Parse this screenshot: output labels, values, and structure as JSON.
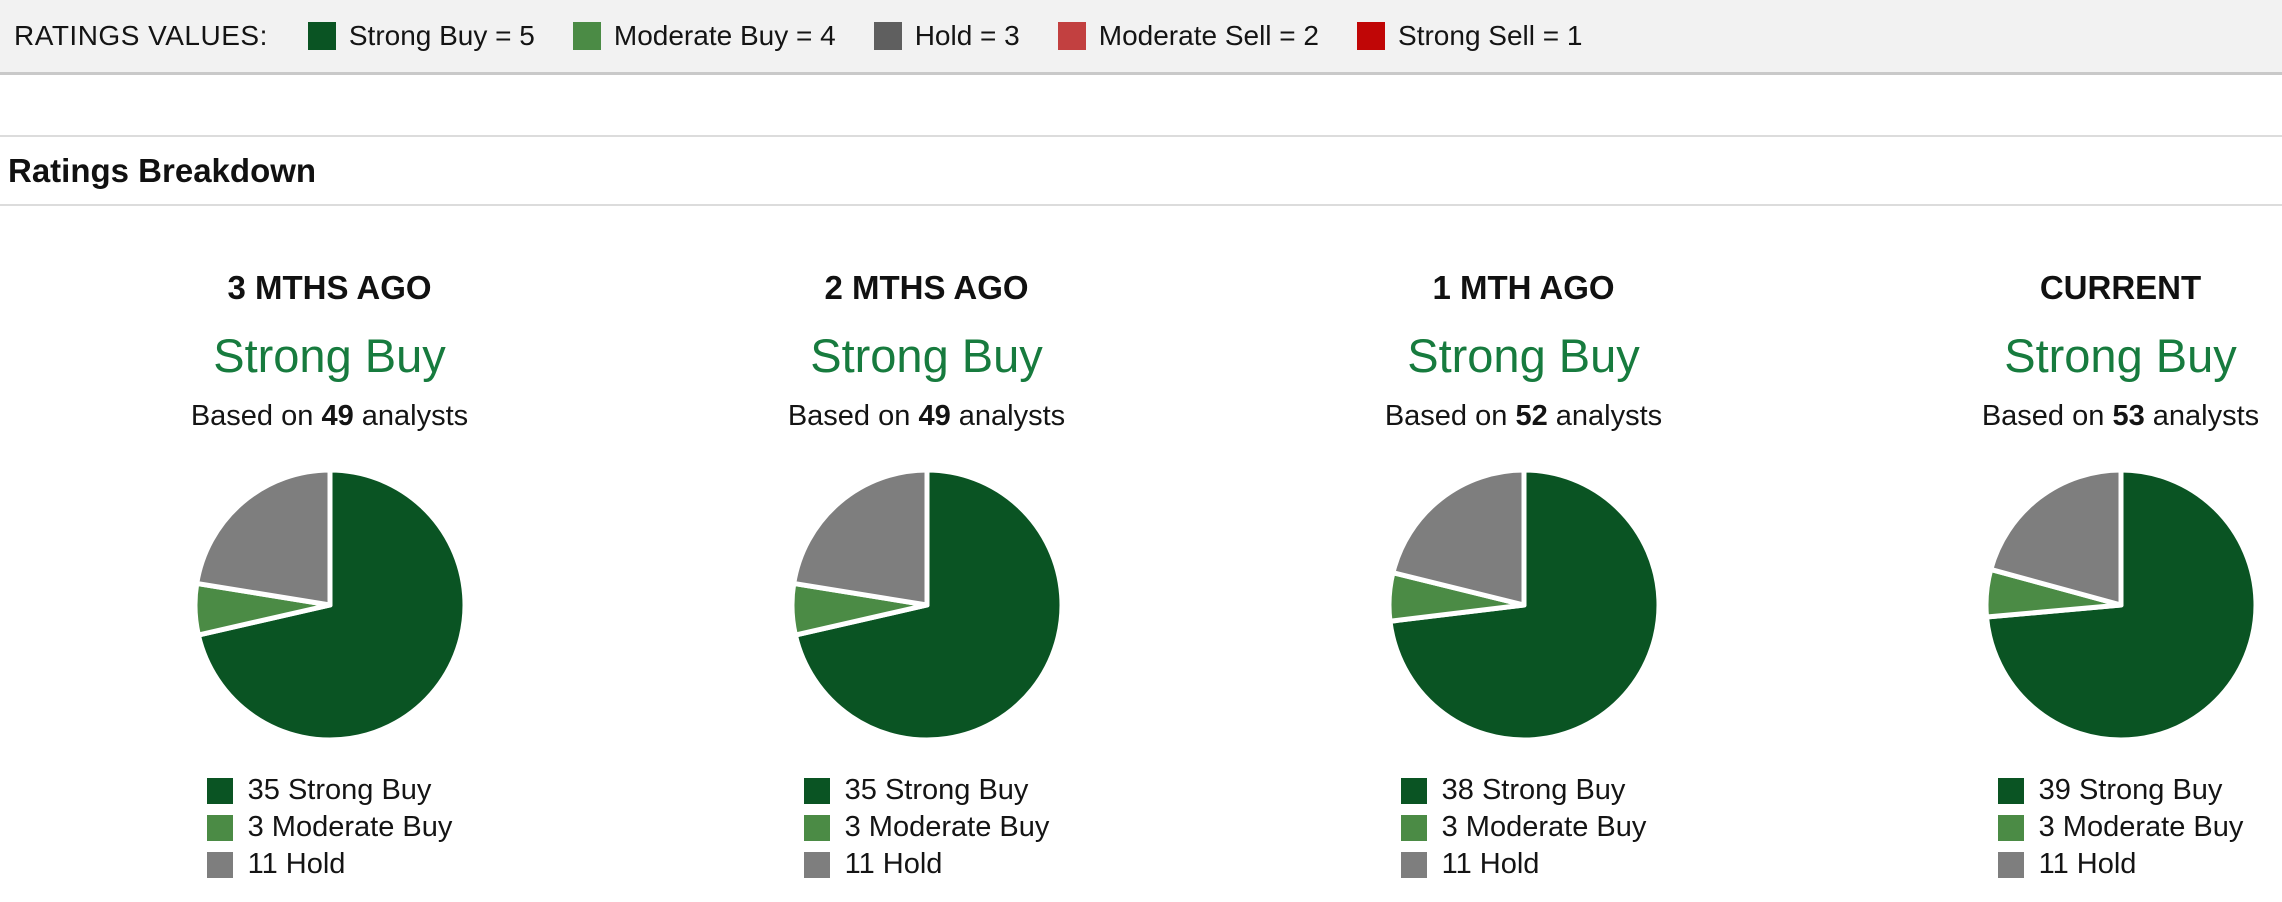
{
  "ratings_values_bar": {
    "label": "RATINGS VALUES:",
    "items": [
      {
        "label": "Strong Buy = 5",
        "color": "#0a5423"
      },
      {
        "label": "Moderate Buy = 4",
        "color": "#4b8b45"
      },
      {
        "label": "Hold = 3",
        "color": "#5f5f5f"
      },
      {
        "label": "Moderate Sell = 2",
        "color": "#c24040"
      },
      {
        "label": "Strong Sell = 1",
        "color": "#c00606"
      }
    ]
  },
  "section": {
    "title": "Ratings Breakdown"
  },
  "labels": {
    "based_on": "Based on",
    "analysts": "analysts"
  },
  "colors": {
    "consensus_text": "#177b3e",
    "pie_stroke": "#ffffff",
    "strong_buy": "#0a5423",
    "moderate_buy": "#4b8b45",
    "hold": "#7e7e7e"
  },
  "chart_data": [
    {
      "type": "pie",
      "title": "3 MTHS AGO",
      "consensus": "Strong Buy",
      "analysts": 49,
      "start_angle_deg": 0,
      "direction": "clockwise",
      "slices": [
        {
          "label": "Strong Buy",
          "value": 35,
          "color": "#0a5423"
        },
        {
          "label": "Moderate Buy",
          "value": 3,
          "color": "#4b8b45"
        },
        {
          "label": "Hold",
          "value": 11,
          "color": "#7e7e7e"
        }
      ]
    },
    {
      "type": "pie",
      "title": "2 MTHS AGO",
      "consensus": "Strong Buy",
      "analysts": 49,
      "start_angle_deg": 0,
      "direction": "clockwise",
      "slices": [
        {
          "label": "Strong Buy",
          "value": 35,
          "color": "#0a5423"
        },
        {
          "label": "Moderate Buy",
          "value": 3,
          "color": "#4b8b45"
        },
        {
          "label": "Hold",
          "value": 11,
          "color": "#7e7e7e"
        }
      ]
    },
    {
      "type": "pie",
      "title": "1 MTH AGO",
      "consensus": "Strong Buy",
      "analysts": 52,
      "start_angle_deg": 0,
      "direction": "clockwise",
      "slices": [
        {
          "label": "Strong Buy",
          "value": 38,
          "color": "#0a5423"
        },
        {
          "label": "Moderate Buy",
          "value": 3,
          "color": "#4b8b45"
        },
        {
          "label": "Hold",
          "value": 11,
          "color": "#7e7e7e"
        }
      ]
    },
    {
      "type": "pie",
      "title": "CURRENT",
      "consensus": "Strong Buy",
      "analysts": 53,
      "start_angle_deg": 0,
      "direction": "clockwise",
      "slices": [
        {
          "label": "Strong Buy",
          "value": 39,
          "color": "#0a5423"
        },
        {
          "label": "Moderate Buy",
          "value": 3,
          "color": "#4b8b45"
        },
        {
          "label": "Hold",
          "value": 11,
          "color": "#7e7e7e"
        }
      ]
    }
  ]
}
